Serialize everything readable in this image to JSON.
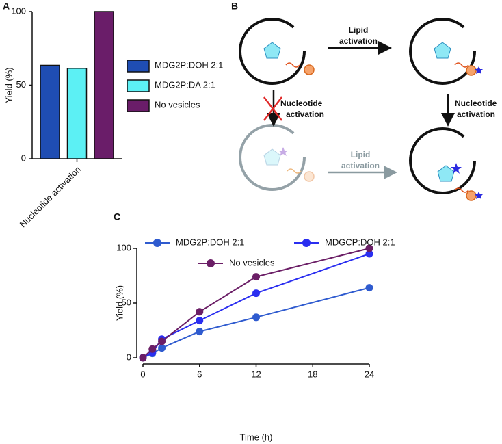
{
  "panels": [
    "A",
    "B",
    "C"
  ],
  "diagram": {
    "top_arrow": [
      "Lipid",
      "activation"
    ],
    "left_arrow": [
      "Nucleotide",
      "activation"
    ],
    "right_arrow": [
      "Nucleotide",
      "activation"
    ],
    "bottom_arrow": [
      "Lipid",
      "activation"
    ]
  },
  "chart_data": [
    {
      "type": "bar",
      "ylabel": "Yield (%)",
      "categories": [
        "Nucleotide activation"
      ],
      "series": [
        {
          "name": "MDG2P:DOH 2:1",
          "color": "#1f4db3",
          "values": [
            63.5
          ]
        },
        {
          "name": "MDG2P:DA 2:1",
          "color": "#5cf0f4",
          "values": [
            61.5
          ]
        },
        {
          "name": "No vesicles",
          "color": "#6a1d69",
          "values": [
            100
          ]
        }
      ],
      "ylim": [
        0,
        100
      ],
      "yticks": [
        0,
        50,
        100
      ]
    },
    {
      "type": "line",
      "xlabel": "Time (h)",
      "ylabel": "Yield (%)",
      "x": [
        0,
        1,
        2,
        6,
        12,
        24
      ],
      "series": [
        {
          "name": "MDG2P:DOH 2:1",
          "color": "#2f5bcf",
          "values": [
            0,
            4,
            9,
            24,
            37,
            64
          ]
        },
        {
          "name": "MDGCP:DOH 2:1",
          "color": "#2a2ef0",
          "values": [
            0,
            5,
            17,
            34,
            59,
            95
          ]
        },
        {
          "name": "No vesicles",
          "color": "#6b1e66",
          "values": [
            0,
            8,
            15,
            42,
            74,
            100
          ]
        }
      ],
      "xlim": [
        0,
        24
      ],
      "ylim": [
        0,
        100
      ],
      "xticks": [
        0,
        6,
        12,
        18,
        24
      ],
      "yticks": [
        0,
        50,
        100
      ]
    }
  ]
}
